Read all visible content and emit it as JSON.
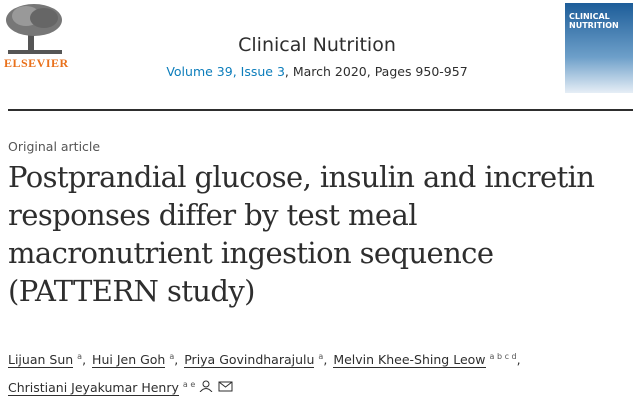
{
  "header": {
    "publisher": "ELSEVIER",
    "journal": "Clinical Nutrition",
    "volume_issue": "Volume 39, Issue 3",
    "details": ", March 2020, Pages 950-957",
    "cover_title": [
      "CLINICAL",
      "NUTRITION"
    ]
  },
  "article": {
    "type": "Original article",
    "title": [
      "Postprandial glucose, insulin and incretin",
      "responses differ by test meal",
      "macronutrient ingestion sequence",
      "(PATTERN study)"
    ],
    "separator": ",",
    "authors": [
      {
        "name": "Lijuan Sun",
        "affiliations": "a"
      },
      {
        "name": "Hui Jen Goh",
        "affiliations": "a"
      },
      {
        "name": "Priya Govindharajulu",
        "affiliations": "a"
      },
      {
        "name": "Melvin Khee-Shing Leow",
        "affiliations": "a b c d"
      },
      {
        "name": "Christiani Jeyakumar Henry",
        "affiliations": "a e"
      }
    ]
  }
}
